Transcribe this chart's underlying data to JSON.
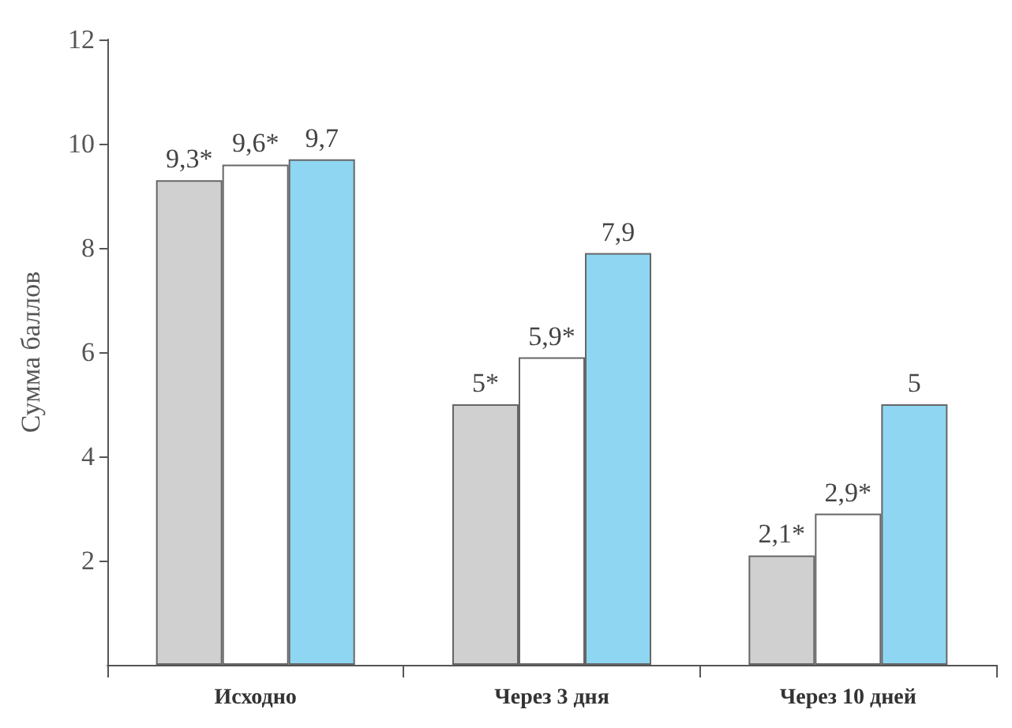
{
  "chart_data": {
    "type": "bar",
    "ylabel": "Сумма баллов",
    "categories": [
      "Исходно",
      "Через 3 дня",
      "Через 10 дней"
    ],
    "series": [
      {
        "color": "#d0d0d0",
        "values": [
          9.3,
          5,
          2.1
        ],
        "value_labels": [
          "9,3*",
          "5*",
          "2,1*"
        ]
      },
      {
        "color": "#ffffff",
        "values": [
          9.6,
          5.9,
          2.9
        ],
        "value_labels": [
          "9,6*",
          "5,9*",
          "2,9*"
        ]
      },
      {
        "color": "#8fd6f2",
        "values": [
          9.7,
          7.9,
          5
        ],
        "value_labels": [
          "9,7",
          "7,9",
          "5"
        ]
      }
    ],
    "ylim": [
      0,
      12
    ],
    "yticks": [
      2,
      4,
      6,
      8,
      10,
      12
    ],
    "grid": false
  }
}
